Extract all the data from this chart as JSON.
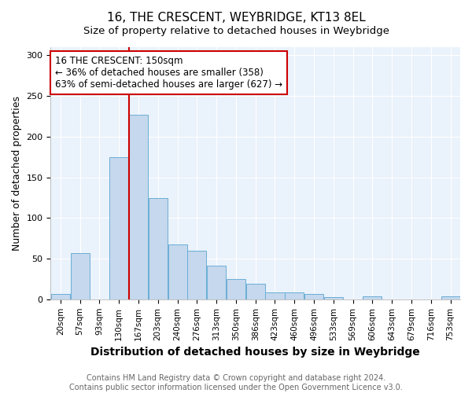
{
  "title": "16, THE CRESCENT, WEYBRIDGE, KT13 8EL",
  "subtitle": "Size of property relative to detached houses in Weybridge",
  "xlabel": "Distribution of detached houses by size in Weybridge",
  "ylabel": "Number of detached properties",
  "bar_labels": [
    "20sqm",
    "57sqm",
    "93sqm",
    "130sqm",
    "167sqm",
    "203sqm",
    "240sqm",
    "276sqm",
    "313sqm",
    "350sqm",
    "386sqm",
    "423sqm",
    "460sqm",
    "496sqm",
    "533sqm",
    "569sqm",
    "606sqm",
    "643sqm",
    "679sqm",
    "716sqm",
    "753sqm"
  ],
  "bar_values": [
    7,
    57,
    0,
    175,
    227,
    124,
    67,
    60,
    41,
    25,
    19,
    9,
    9,
    7,
    3,
    0,
    4,
    0,
    0,
    0,
    4
  ],
  "bar_color": "#c5d8ed",
  "bar_edgecolor": "#6aaed6",
  "vline_x": 3.5,
  "vline_color": "#cc0000",
  "annotation_text": "16 THE CRESCENT: 150sqm\n← 36% of detached houses are smaller (358)\n63% of semi-detached houses are larger (627) →",
  "annotation_box_edgecolor": "#cc0000",
  "annotation_box_facecolor": "white",
  "ylim": [
    0,
    310
  ],
  "yticks": [
    0,
    50,
    100,
    150,
    200,
    250,
    300
  ],
  "footnote": "Contains HM Land Registry data © Crown copyright and database right 2024.\nContains public sector information licensed under the Open Government Licence v3.0.",
  "title_fontsize": 11,
  "subtitle_fontsize": 9.5,
  "xlabel_fontsize": 10,
  "ylabel_fontsize": 9,
  "tick_fontsize": 7.5,
  "annotation_fontsize": 8.5,
  "footnote_fontsize": 7,
  "background_color": "#ffffff",
  "plot_bg_color": "#eaf2fb",
  "grid_color": "#ffffff"
}
